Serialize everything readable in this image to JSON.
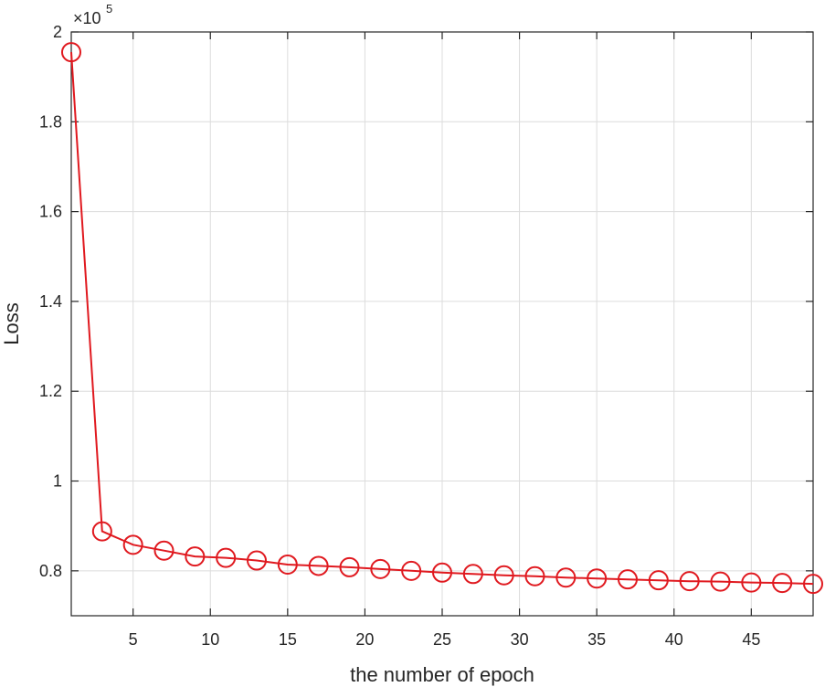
{
  "chart_data": {
    "type": "line",
    "xlabel": "the number of epoch",
    "ylabel": "Loss",
    "y_multiplier": {
      "base": "×10",
      "exponent": "5"
    },
    "xlim": [
      1,
      49
    ],
    "ylim": [
      0.7,
      2.0
    ],
    "xticks": [
      5,
      10,
      15,
      20,
      25,
      30,
      35,
      40,
      45
    ],
    "xtick_labels": [
      "5",
      "10",
      "15",
      "20",
      "25",
      "30",
      "35",
      "40",
      "45"
    ],
    "yticks": [
      0.8,
      1.0,
      1.2,
      1.4,
      1.6,
      1.8,
      2.0
    ],
    "ytick_labels": [
      "0.8",
      "1",
      "1.2",
      "1.4",
      "1.6",
      "1.8",
      "2"
    ],
    "grid": true,
    "series": [
      {
        "color": "#e0191f",
        "marker": "circle",
        "x": [
          1,
          3,
          5,
          7,
          9,
          11,
          13,
          15,
          17,
          19,
          21,
          23,
          25,
          27,
          29,
          31,
          33,
          35,
          37,
          39,
          41,
          43,
          45,
          47,
          49
        ],
        "y": [
          1.955,
          0.888,
          0.858,
          0.845,
          0.832,
          0.829,
          0.823,
          0.814,
          0.811,
          0.808,
          0.804,
          0.8,
          0.796,
          0.793,
          0.79,
          0.788,
          0.785,
          0.783,
          0.781,
          0.779,
          0.777,
          0.776,
          0.774,
          0.773,
          0.771
        ]
      }
    ]
  }
}
